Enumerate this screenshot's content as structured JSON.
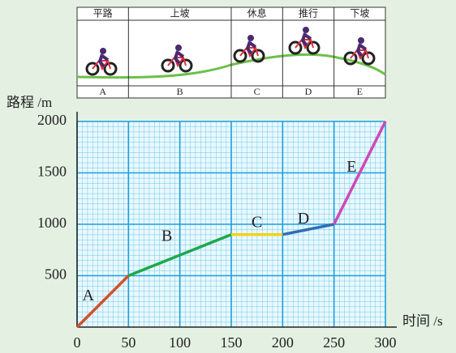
{
  "chart_data": {
    "type": "line",
    "xlabel": "时间 /s",
    "ylabel": "路程 /m",
    "xlim": [
      0,
      300
    ],
    "ylim": [
      0,
      2000
    ],
    "xticks": [
      0,
      50,
      100,
      150,
      200,
      250,
      300
    ],
    "yticks": [
      500,
      1000,
      1500,
      2000
    ],
    "grid": true,
    "series": [
      {
        "name": "A",
        "color": "#d4502a",
        "x": [
          0,
          50
        ],
        "values": [
          0,
          500
        ]
      },
      {
        "name": "B",
        "color": "#1ea84a",
        "x": [
          50,
          150
        ],
        "values": [
          500,
          900
        ]
      },
      {
        "name": "C",
        "color": "#f2d21a",
        "x": [
          150,
          200
        ],
        "values": [
          900,
          900
        ]
      },
      {
        "name": "D",
        "color": "#2f6db5",
        "x": [
          200,
          250
        ],
        "values": [
          900,
          1000
        ]
      },
      {
        "name": "E",
        "color": "#d048b8",
        "x": [
          250,
          300
        ],
        "values": [
          1000,
          2000
        ]
      }
    ]
  },
  "strip": {
    "headers": [
      "平路",
      "上坡",
      "休息",
      "推行",
      "下坡"
    ]
  }
}
